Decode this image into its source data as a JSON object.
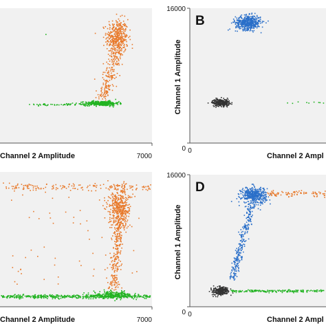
{
  "colors": {
    "plot_background": "#f1f1f1",
    "axis": "#555555",
    "orange": "#e8792a",
    "green": "#22b322",
    "blue": "#2a6fc9",
    "black": "#333333"
  },
  "chart_data": [
    {
      "type": "scatter",
      "panel_label": "",
      "xlabel": "Channel 2 Amplitude",
      "ylabel": "",
      "xlim": [
        0,
        7000
      ],
      "ylim": [
        0,
        16000
      ],
      "x_tick_labels": [
        "7000"
      ],
      "y_tick_labels": [],
      "clusters": [
        {
          "color": "orange",
          "cx": 5400,
          "cy": 12500,
          "sx": 250,
          "sy": 1100,
          "n": 420
        },
        {
          "color": "orange",
          "type": "trail",
          "x0": 4700,
          "y0": 4800,
          "x1": 5400,
          "y1": 11000,
          "spread": 300,
          "n": 200
        },
        {
          "color": "green",
          "cx": 4700,
          "cy": 4700,
          "sx": 380,
          "sy": 140,
          "n": 360
        },
        {
          "color": "green",
          "type": "hline",
          "x0": 1300,
          "x1": 4300,
          "y": 4550,
          "spread": 60,
          "n": 60
        },
        {
          "color": "green",
          "cx": 2100,
          "cy": 12900,
          "sx": 10,
          "sy": 10,
          "n": 1
        }
      ]
    },
    {
      "type": "scatter",
      "panel_label": "B",
      "xlabel": "Channel 2 Ampl",
      "ylabel": "Channel 1 Amplitude",
      "xlim": [
        0,
        7000
      ],
      "ylim": [
        0,
        16000
      ],
      "x_tick_labels": [
        "0"
      ],
      "y_tick_labels": [
        "16000",
        "0"
      ],
      "clusters": [
        {
          "color": "blue",
          "cx": 3000,
          "cy": 14300,
          "sx": 320,
          "sy": 420,
          "n": 480
        },
        {
          "color": "black",
          "cx": 1600,
          "cy": 4800,
          "sx": 220,
          "sy": 210,
          "n": 260
        },
        {
          "color": "green",
          "type": "hline",
          "x0": 5000,
          "x1": 7000,
          "y": 4800,
          "spread": 50,
          "n": 10
        }
      ]
    },
    {
      "type": "scatter",
      "panel_label": "",
      "xlabel": "Channel 2 Amplitude",
      "ylabel": "",
      "xlim": [
        0,
        7000
      ],
      "ylim": [
        0,
        16000
      ],
      "x_tick_labels": [
        "7000"
      ],
      "y_tick_labels": [],
      "clusters": [
        {
          "color": "orange",
          "cx": 5500,
          "cy": 11800,
          "sx": 260,
          "sy": 1100,
          "n": 400
        },
        {
          "color": "orange",
          "type": "trail",
          "x0": 5200,
          "y0": 1800,
          "x1": 5500,
          "y1": 10500,
          "spread": 280,
          "n": 260
        },
        {
          "color": "orange",
          "type": "hline",
          "x0": 0,
          "x1": 7000,
          "y": 14200,
          "spread": 220,
          "n": 170
        },
        {
          "color": "orange",
          "type": "uniform",
          "x0": 500,
          "x1": 6500,
          "y0": 2500,
          "y1": 14000,
          "n": 60
        },
        {
          "color": "green",
          "type": "hline",
          "x0": 0,
          "x1": 7000,
          "y": 1200,
          "spread": 110,
          "n": 420
        },
        {
          "color": "green",
          "cx": 5200,
          "cy": 1400,
          "sx": 450,
          "sy": 200,
          "n": 240
        }
      ]
    },
    {
      "type": "scatter",
      "panel_label": "D",
      "xlabel": "Channel 2 Ampl",
      "ylabel": "Channel 1 Amplitude",
      "xlim": [
        0,
        7000
      ],
      "ylim": [
        0,
        16000
      ],
      "x_tick_labels": [
        "0"
      ],
      "y_tick_labels": [
        "16000",
        "0"
      ],
      "clusters": [
        {
          "color": "blue",
          "cx": 3300,
          "cy": 13500,
          "sx": 320,
          "sy": 500,
          "n": 420
        },
        {
          "color": "blue",
          "type": "trail",
          "x0": 2150,
          "y0": 3200,
          "x1": 3200,
          "y1": 12300,
          "spread": 200,
          "n": 260
        },
        {
          "color": "orange",
          "type": "hline",
          "x0": 4000,
          "x1": 7000,
          "y": 13700,
          "spread": 180,
          "n": 90
        },
        {
          "color": "black",
          "cx": 1600,
          "cy": 1900,
          "sx": 200,
          "sy": 260,
          "n": 260
        },
        {
          "color": "green",
          "type": "hline",
          "x0": 2100,
          "x1": 7000,
          "y": 1900,
          "spread": 70,
          "n": 180
        }
      ]
    }
  ]
}
